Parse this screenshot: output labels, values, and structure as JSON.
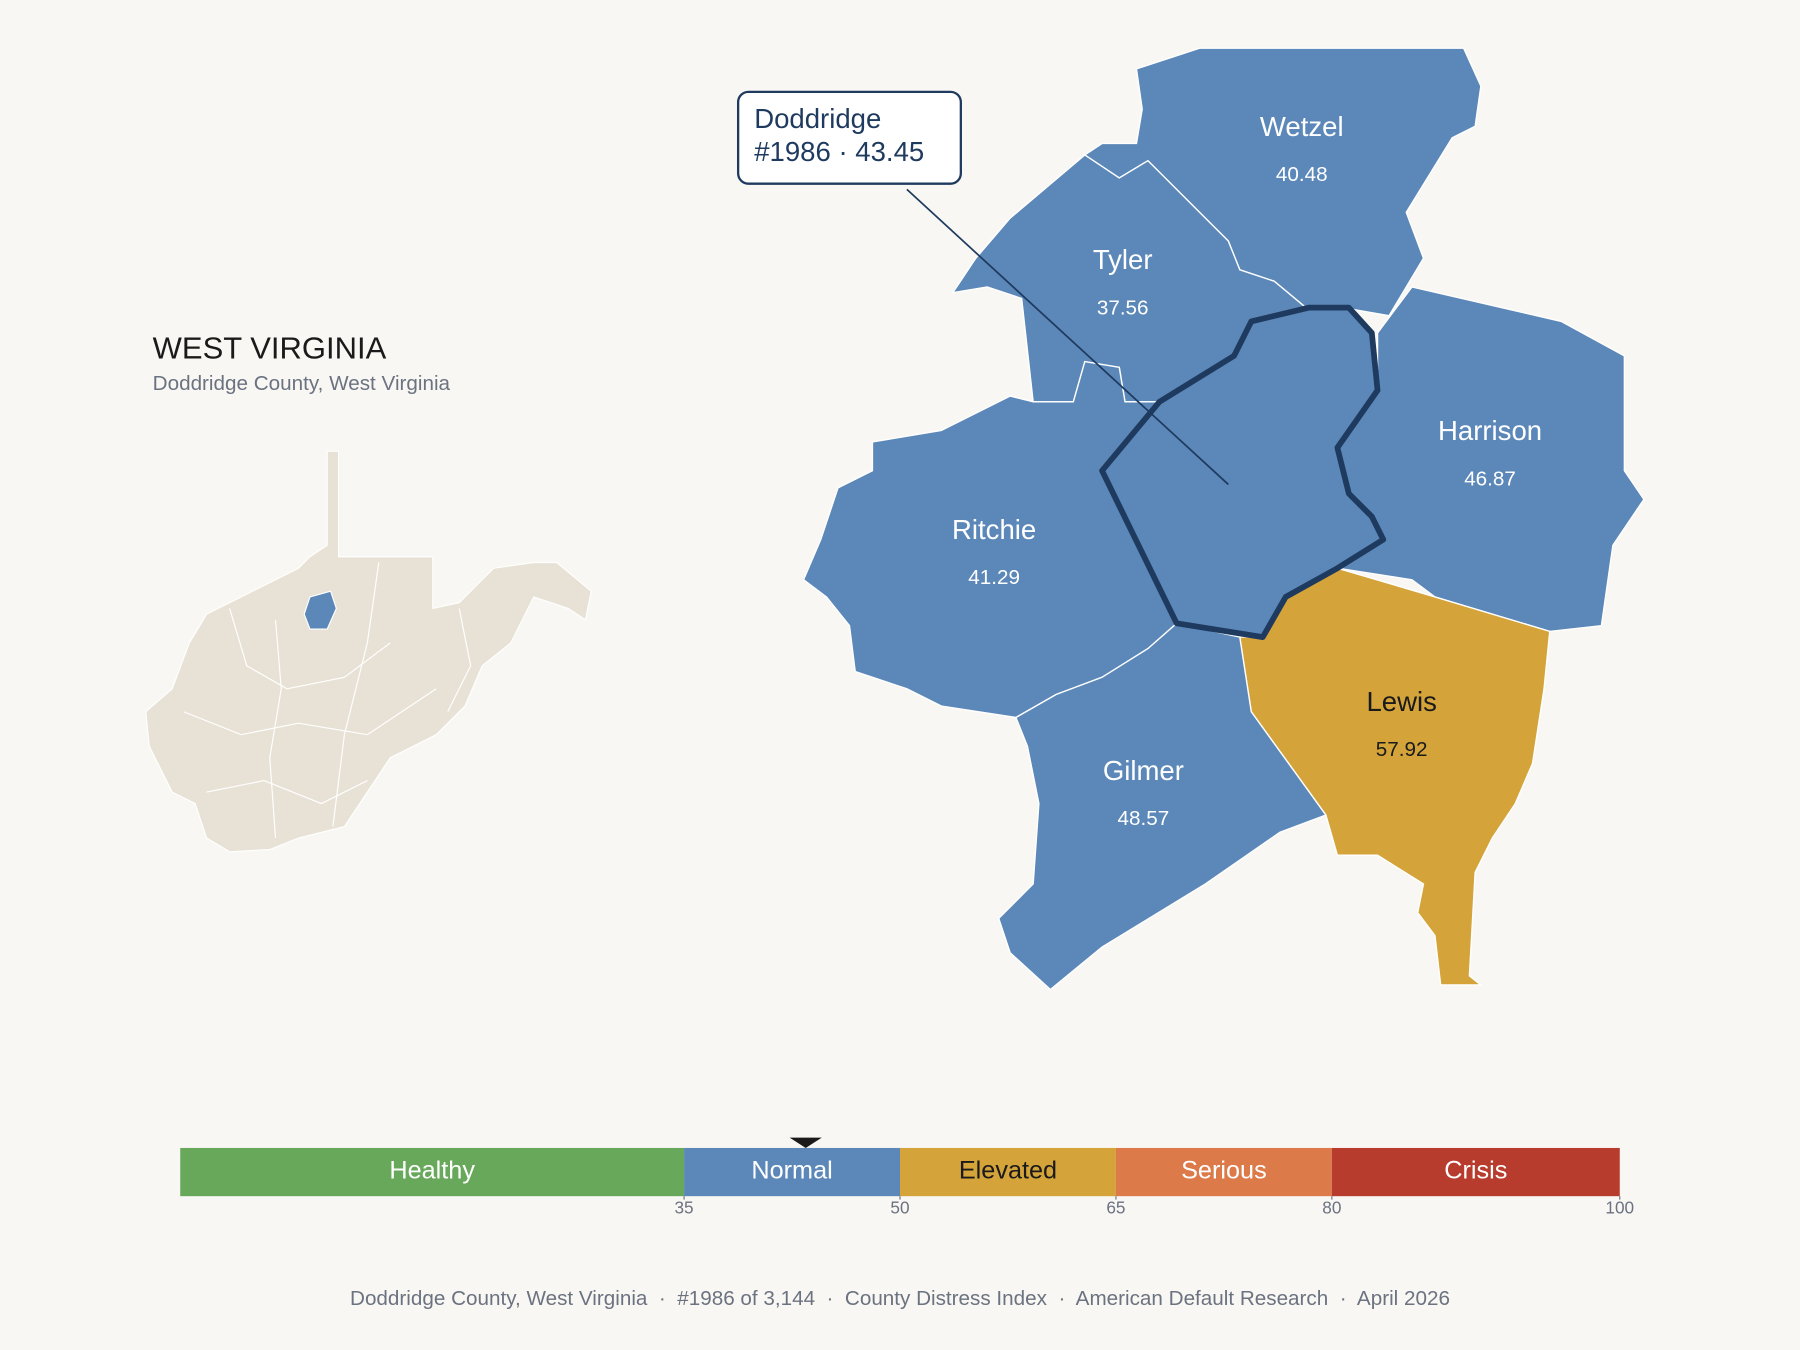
{
  "header": {
    "title": "WEST VIRGINIA",
    "subtitle": "Doddridge County, West Virginia"
  },
  "focus": {
    "name": "Doddridge",
    "label": "#1986 · 43.45",
    "score": 43.45,
    "color": "#5b88b8"
  },
  "counties": [
    {
      "name": "Wetzel",
      "value": 40.48,
      "color": "#5b88b8"
    },
    {
      "name": "Tyler",
      "value": 37.56,
      "color": "#5b88b8"
    },
    {
      "name": "Harrison",
      "value": 46.87,
      "color": "#5b88b8"
    },
    {
      "name": "Ritchie",
      "value": 41.29,
      "color": "#5b88b8"
    },
    {
      "name": "Lewis",
      "value": 57.92,
      "color": "#d4a43a"
    },
    {
      "name": "Gilmer",
      "value": 48.57,
      "color": "#5b88b8"
    }
  ],
  "scale": {
    "lim": [
      0,
      100
    ],
    "ticks": [
      35,
      50,
      65,
      80,
      100
    ],
    "bands": [
      {
        "label": "Healthy",
        "max": 35,
        "color": "#68a85a"
      },
      {
        "label": "Normal",
        "max": 50,
        "color": "#5b88b8"
      },
      {
        "label": "Elevated",
        "max": 65,
        "color": "#d4a43a"
      },
      {
        "label": "Serious",
        "max": 80,
        "color": "#dc7a4a"
      },
      {
        "label": "Crisis",
        "max": 100,
        "color": "#b83c2e"
      }
    ]
  },
  "footer": "Doddridge County, West Virginia  ·  #1986 of 3,144  ·  County Distress Index  ·  American Default Research  ·  April 2026"
}
